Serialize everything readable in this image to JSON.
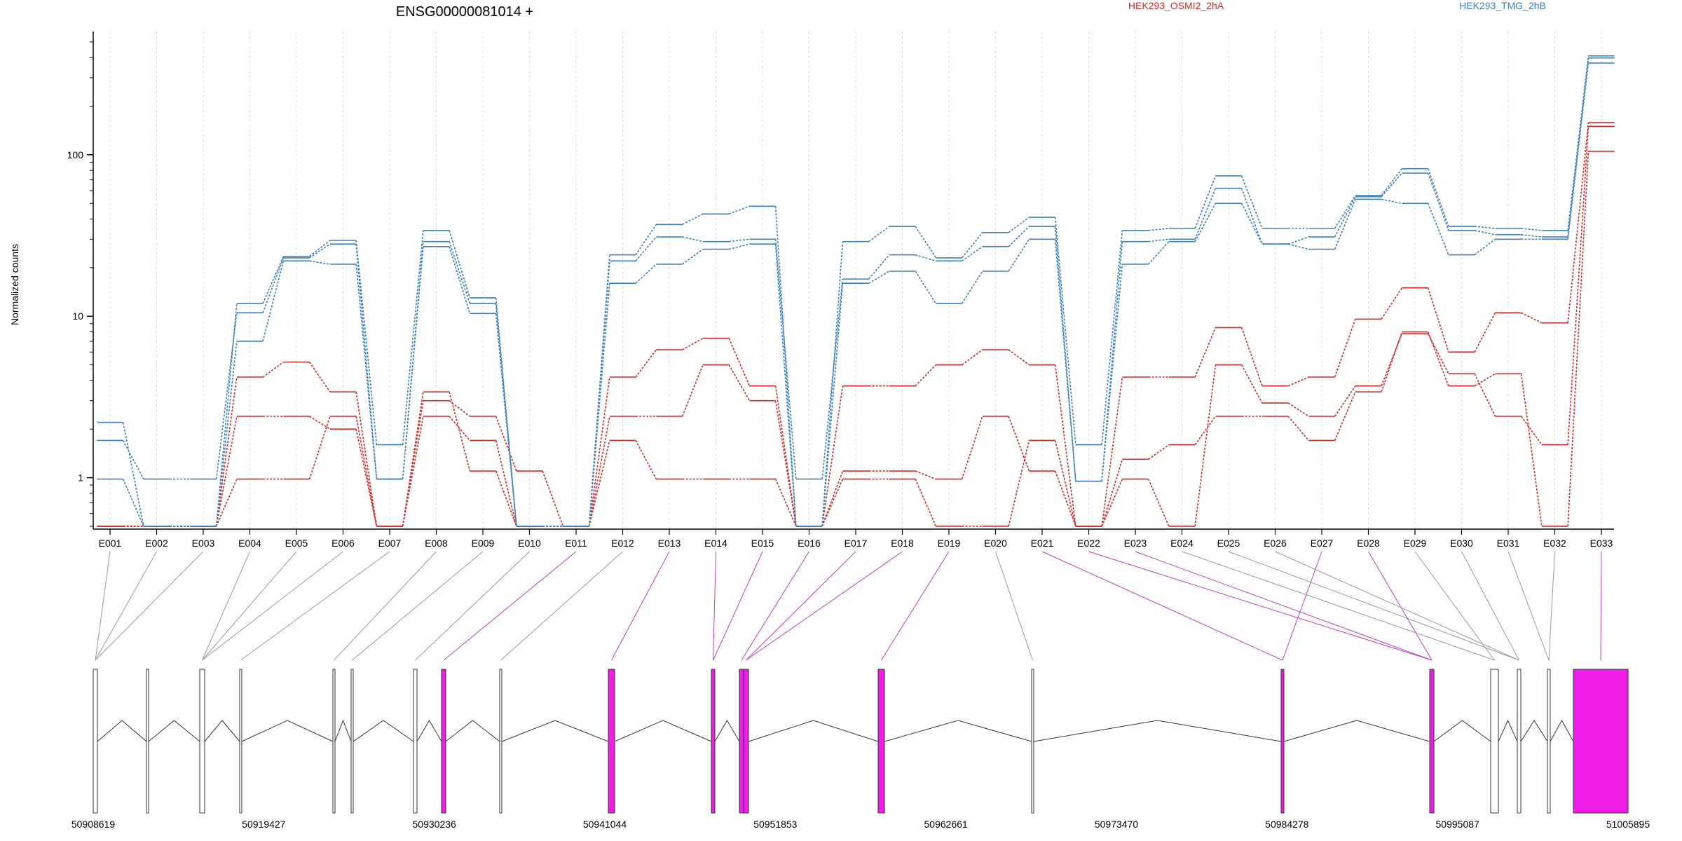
{
  "chart_data": {
    "type": "line",
    "title": "ENSG00000081014 +",
    "xlabel": "",
    "ylabel": "Normalized counts",
    "yscale": "log",
    "ylim": [
      0.48,
      580
    ],
    "yticks": [
      {
        "value": 1,
        "label": "1"
      },
      {
        "value": 10,
        "label": "10"
      },
      {
        "value": 100,
        "label": "100"
      }
    ],
    "grid": "vertical-dashed",
    "legend": "top",
    "categories": [
      "E001",
      "E002",
      "E003",
      "E004",
      "E005",
      "E006",
      "E007",
      "E008",
      "E009",
      "E010",
      "E011",
      "E012",
      "E013",
      "E014",
      "E015",
      "E016",
      "E017",
      "E018",
      "E019",
      "E020",
      "E021",
      "E022",
      "E023",
      "E024",
      "E025",
      "E026",
      "E027",
      "E028",
      "E029",
      "E030",
      "E031",
      "E032",
      "E033"
    ],
    "groups": [
      {
        "name": "HEK293_OSMI2_2hA",
        "color": "#d62728"
      },
      {
        "name": "HEK293_TMG_2hB",
        "color": "#3a80bd"
      }
    ],
    "series": [
      {
        "group": 0,
        "values": [
          0.5,
          0.5,
          0.5,
          0.98,
          0.98,
          2.4,
          0.5,
          3.0,
          2.4,
          1.1,
          0.5,
          1.7,
          0.98,
          0.98,
          0.98,
          0.5,
          1.1,
          1.1,
          0.98,
          2.4,
          1.1,
          0.5,
          1.3,
          1.6,
          2.4,
          2.4,
          1.7,
          3.4,
          8.0,
          3.7,
          4.4,
          0.5,
          105
        ]
      },
      {
        "group": 0,
        "values": [
          0.5,
          0.5,
          0.5,
          2.4,
          2.4,
          2.0,
          0.5,
          2.4,
          1.7,
          0.5,
          0.5,
          2.4,
          2.4,
          5.0,
          3.0,
          0.5,
          0.98,
          0.98,
          0.5,
          0.5,
          1.7,
          0.5,
          0.98,
          0.5,
          5.0,
          2.9,
          2.4,
          3.7,
          7.8,
          4.4,
          2.4,
          1.6,
          150
        ]
      },
      {
        "group": 0,
        "values": [
          0.5,
          0.5,
          0.5,
          4.2,
          5.2,
          3.4,
          0.5,
          3.4,
          1.1,
          0.5,
          0.5,
          4.2,
          6.2,
          7.3,
          3.7,
          0.5,
          3.7,
          3.7,
          5.0,
          6.2,
          5.0,
          0.5,
          4.2,
          4.2,
          8.5,
          3.7,
          4.2,
          9.6,
          15,
          6.0,
          10.5,
          9.1,
          158
        ]
      },
      {
        "group": 1,
        "values": [
          0.98,
          0.5,
          0.5,
          7.0,
          22,
          21,
          0.98,
          27,
          10.4,
          0.5,
          0.5,
          16,
          21,
          26,
          28,
          0.5,
          16,
          19,
          12,
          19,
          30,
          0.95,
          21,
          29,
          50,
          28,
          26,
          53,
          50,
          24,
          30,
          30,
          370
        ]
      },
      {
        "group": 1,
        "values": [
          1.7,
          0.98,
          0.98,
          10.5,
          23,
          28,
          0.98,
          29,
          12,
          0.5,
          0.5,
          22,
          31,
          29,
          30,
          0.98,
          17,
          24,
          22,
          27,
          36,
          0.95,
          29,
          30,
          62,
          28,
          31,
          55,
          77,
          34,
          32,
          31,
          398
        ]
      },
      {
        "group": 1,
        "values": [
          2.2,
          0.5,
          0.5,
          12,
          23.5,
          29.5,
          1.6,
          34,
          13,
          0.5,
          0.5,
          24,
          37,
          43,
          48,
          0.5,
          29,
          36,
          23,
          33,
          41,
          1.6,
          34,
          35,
          74,
          35,
          35,
          56,
          82,
          36,
          35,
          34,
          410
        ]
      }
    ],
    "genome": {
      "tick_labels": [
        "50908619",
        "50919427",
        "50930236",
        "50941044",
        "50951853",
        "50962661",
        "50973470",
        "50984278",
        "50995087",
        "51005895"
      ],
      "range": [
        50908619,
        51005895
      ],
      "feature_colors": {
        "tested": "#ffffff",
        "significant": "#f01ee6"
      }
    }
  }
}
